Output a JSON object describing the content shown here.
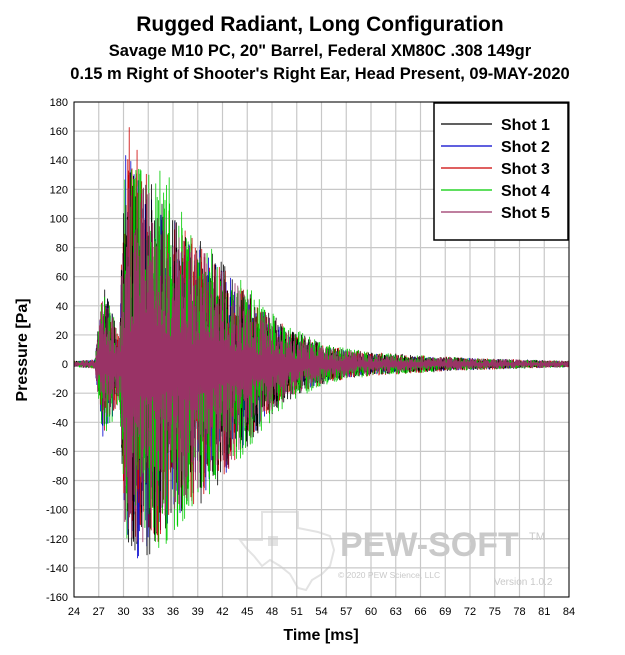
{
  "chart_data": {
    "type": "line",
    "title": "Rugged Radiant, Long Configuration",
    "subtitle_lines": [
      "Savage M10 PC, 20\" Barrel, Federal XM80C .308 149gr",
      "0.15 m Right of Shooter's Right Ear, Head Present, 09-MAY-2020"
    ],
    "xlabel": "Time [ms]",
    "ylabel": "Pressure [Pa]",
    "xlim": [
      24,
      84
    ],
    "ylim": [
      -160,
      180
    ],
    "x_ticks": [
      "24",
      "27",
      "30",
      "33",
      "36",
      "39",
      "42",
      "45",
      "48",
      "51",
      "54",
      "57",
      "60",
      "63",
      "66",
      "69",
      "72",
      "75",
      "78",
      "81",
      "84"
    ],
    "y_ticks": [
      "180",
      "160",
      "140",
      "120",
      "100",
      "80",
      "60",
      "40",
      "20",
      "0",
      "-20",
      "-40",
      "-60",
      "-80",
      "-100",
      "-120",
      "-140",
      "-160"
    ],
    "grid": true,
    "legend_position": "top-right",
    "series": [
      {
        "name": "Shot 1",
        "color": "#000000",
        "envelope": {
          "x": [
            24,
            26.5,
            27.5,
            29.5,
            30.2,
            32.5,
            35,
            38,
            42,
            46,
            50,
            55,
            60,
            66,
            72,
            78,
            84
          ],
          "max": [
            2,
            3,
            55,
            20,
            150,
            135,
            110,
            95,
            70,
            45,
            25,
            12,
            8,
            6,
            4,
            3,
            2
          ],
          "min": [
            -2,
            -3,
            -50,
            -25,
            -120,
            -140,
            -120,
            -105,
            -80,
            -50,
            -25,
            -12,
            -8,
            -6,
            -4,
            -3,
            -2
          ]
        }
      },
      {
        "name": "Shot 2",
        "color": "#0000cc",
        "envelope": {
          "x": [
            24,
            26.5,
            27.5,
            29.5,
            30.2,
            32.5,
            35,
            38,
            42,
            46,
            50,
            55,
            60,
            66,
            72,
            78,
            84
          ],
          "max": [
            2,
            3,
            55,
            20,
            145,
            130,
            105,
            90,
            65,
            42,
            22,
            11,
            7,
            5,
            4,
            3,
            2
          ],
          "min": [
            -2,
            -3,
            -52,
            -25,
            -118,
            -145,
            -118,
            -100,
            -78,
            -48,
            -22,
            -11,
            -7,
            -5,
            -4,
            -3,
            -2
          ]
        }
      },
      {
        "name": "Shot 3",
        "color": "#cc0000",
        "envelope": {
          "x": [
            24,
            26.5,
            27.5,
            29.5,
            30.2,
            32.5,
            35,
            38,
            42,
            46,
            50,
            55,
            60,
            66,
            72,
            78,
            84
          ],
          "max": [
            2,
            3,
            50,
            20,
            172,
            135,
            108,
            92,
            68,
            44,
            24,
            12,
            8,
            6,
            4,
            3,
            2
          ],
          "min": [
            -2,
            -3,
            -48,
            -25,
            -115,
            -135,
            -118,
            -102,
            -78,
            -48,
            -24,
            -12,
            -8,
            -6,
            -4,
            -3,
            -2
          ]
        }
      },
      {
        "name": "Shot 4",
        "color": "#00cc00",
        "envelope": {
          "x": [
            24,
            26.5,
            27.5,
            29.5,
            30.2,
            32.5,
            35,
            38,
            42,
            46,
            50,
            55,
            60,
            66,
            72,
            78,
            84
          ],
          "max": [
            2,
            3,
            55,
            22,
            150,
            130,
            135,
            100,
            72,
            48,
            26,
            13,
            8,
            6,
            4,
            3,
            2
          ],
          "min": [
            -2,
            -3,
            -55,
            -28,
            -120,
            -130,
            -125,
            -112,
            -82,
            -52,
            -26,
            -13,
            -8,
            -6,
            -4,
            -3,
            -2
          ]
        }
      },
      {
        "name": "Shot 5",
        "color": "#993366",
        "envelope": {
          "x": [
            24,
            26.5,
            27.5,
            29.5,
            30.2,
            32.5,
            35,
            38,
            42,
            46,
            50,
            55,
            60,
            66,
            72,
            78,
            84
          ],
          "max": [
            2,
            3,
            50,
            20,
            140,
            125,
            105,
            88,
            65,
            42,
            23,
            11,
            7,
            5,
            4,
            3,
            2
          ],
          "min": [
            -2,
            -3,
            -48,
            -25,
            -115,
            -128,
            -112,
            -98,
            -75,
            -47,
            -23,
            -11,
            -7,
            -5,
            -4,
            -3,
            -2
          ]
        }
      }
    ]
  },
  "watermark": {
    "brand": "PEW-SOFT",
    "trademark": "TM",
    "copyright": "© 2020 PEW Science, LLC",
    "version": "Version 1.0.2"
  }
}
